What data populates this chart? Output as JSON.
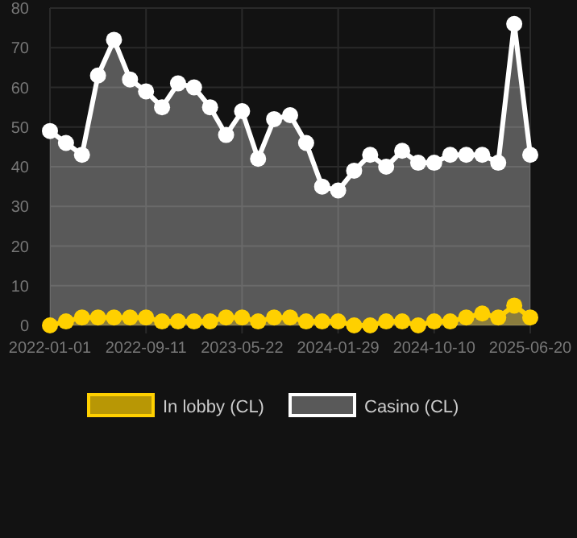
{
  "chart_data": {
    "type": "area",
    "categories": [
      "2022-01-01",
      null,
      null,
      null,
      null,
      null,
      "2022-09-11",
      null,
      null,
      null,
      null,
      null,
      "2023-05-22",
      null,
      null,
      null,
      null,
      null,
      "2024-01-29",
      null,
      null,
      null,
      null,
      null,
      "2024-10-10",
      null,
      null,
      null,
      null,
      null,
      "2025-06-20"
    ],
    "series": [
      {
        "name": "In lobby (CL)",
        "color": "#ffd000",
        "values": [
          0,
          1,
          2,
          2,
          2,
          2,
          2,
          1,
          1,
          1,
          1,
          2,
          2,
          1,
          2,
          2,
          1,
          1,
          1,
          0,
          0,
          1,
          1,
          0,
          1,
          1,
          2,
          3,
          2,
          5,
          2
        ]
      },
      {
        "name": "Casino (CL)",
        "color": "#ffffff",
        "values": [
          49,
          46,
          43,
          63,
          72,
          62,
          59,
          55,
          61,
          60,
          55,
          48,
          54,
          42,
          52,
          53,
          46,
          35,
          34,
          39,
          43,
          40,
          44,
          41,
          41,
          43,
          43,
          43,
          41,
          76,
          43
        ]
      }
    ],
    "ylim": [
      0,
      80
    ],
    "yticks": [
      0,
      10,
      20,
      30,
      40,
      50,
      60,
      70,
      80
    ],
    "grid": true,
    "legend": "bottom",
    "marker": "circle"
  }
}
